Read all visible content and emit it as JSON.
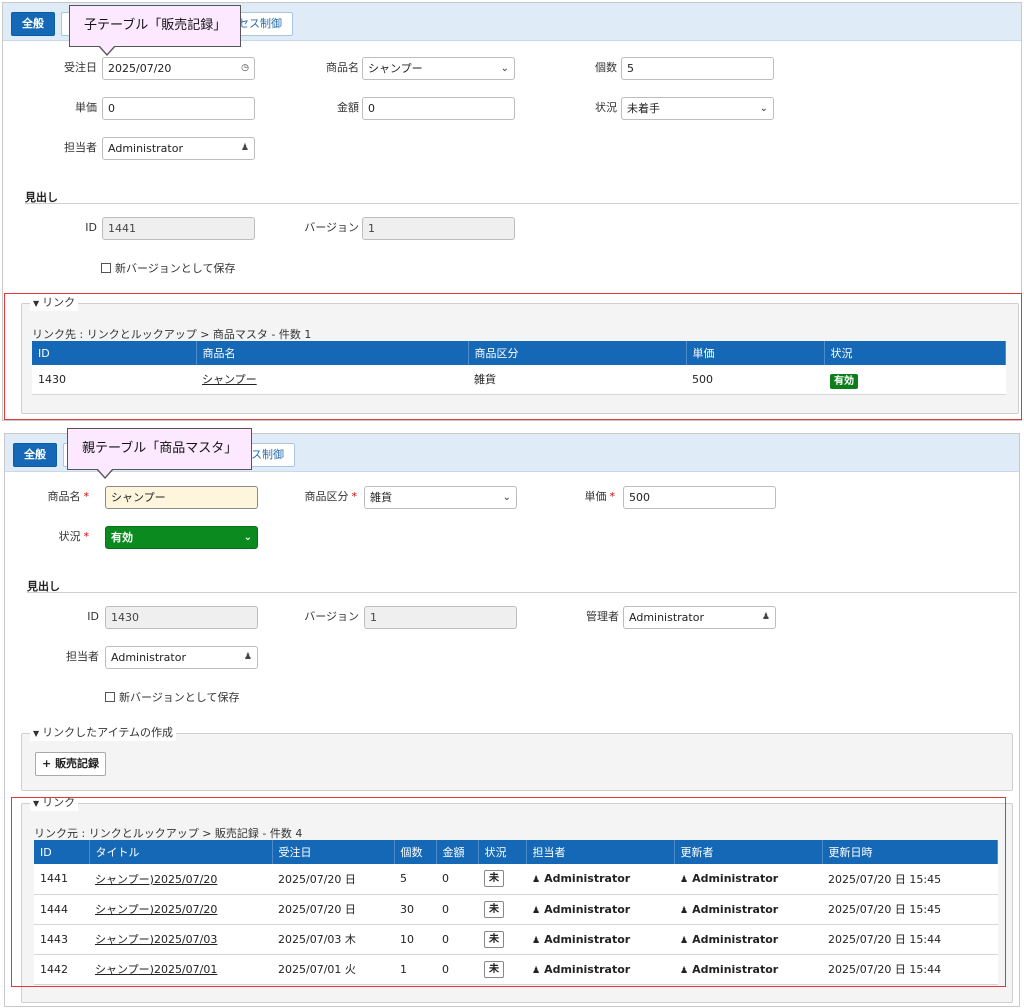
{
  "child": {
    "callout": "子テーブル「販売記録」",
    "tabs": {
      "general": "全般",
      "access": "アクセス制御",
      "access_visible": "セス制御"
    },
    "fields": {
      "order_date": {
        "label": "受注日",
        "value": "2025/07/20"
      },
      "product": {
        "label": "商品名",
        "value": "シャンプー"
      },
      "qty": {
        "label": "個数",
        "value": "5"
      },
      "unit_price": {
        "label": "単価",
        "value": "0"
      },
      "amount": {
        "label": "金額",
        "value": "0"
      },
      "status": {
        "label": "状況",
        "value": "未着手"
      },
      "owner": {
        "label": "担当者",
        "value": "Administrator"
      }
    },
    "heading": "見出し",
    "id": {
      "label": "ID",
      "value": "1441"
    },
    "version": {
      "label": "バージョン",
      "value": "1"
    },
    "save_new_version": "新バージョンとして保存",
    "link": {
      "legend": "リンク",
      "path": "リンク先 : リンクとルックアップ > 商品マスタ - 件数 1",
      "columns": [
        "ID",
        "商品名",
        "商品区分",
        "単価",
        "状況"
      ],
      "rows": [
        {
          "id": "1430",
          "name": "シャンプー",
          "category": "雑貨",
          "price": "500",
          "status": "有効"
        }
      ]
    }
  },
  "parent": {
    "callout": "親テーブル「商品マスタ」",
    "tabs": {
      "general": "全般",
      "access_visible": "セス制御"
    },
    "fields": {
      "product": {
        "label": "商品名",
        "value": "シャンプー"
      },
      "category": {
        "label": "商品区分",
        "value": "雑貨"
      },
      "unit_price": {
        "label": "単価",
        "value": "500"
      },
      "status": {
        "label": "状況",
        "value": "有効"
      }
    },
    "heading": "見出し",
    "id": {
      "label": "ID",
      "value": "1430"
    },
    "version": {
      "label": "バージョン",
      "value": "1"
    },
    "manager": {
      "label": "管理者",
      "value": "Administrator"
    },
    "owner": {
      "label": "担当者",
      "value": "Administrator"
    },
    "save_new_version": "新バージョンとして保存",
    "create_linked": {
      "legend": "リンクしたアイテムの作成",
      "button": "販売記録",
      "button_icon": "+"
    },
    "link": {
      "legend": "リンク",
      "path": "リンク元 : リンクとルックアップ > 販売記録 - 件数 4",
      "columns": [
        "ID",
        "タイトル",
        "受注日",
        "個数",
        "金額",
        "状況",
        "担当者",
        "更新者",
        "更新日時"
      ],
      "rows": [
        {
          "id": "1441",
          "title": "シャンプー)2025/07/20",
          "date": "2025/07/20 日",
          "qty": "5",
          "amount": "0",
          "status": "未",
          "owner": "Administrator",
          "updater": "Administrator",
          "updated": "2025/07/20 日 15:45"
        },
        {
          "id": "1444",
          "title": "シャンプー)2025/07/20",
          "date": "2025/07/20 日",
          "qty": "30",
          "amount": "0",
          "status": "未",
          "owner": "Administrator",
          "updater": "Administrator",
          "updated": "2025/07/20 日 15:45"
        },
        {
          "id": "1443",
          "title": "シャンプー)2025/07/03",
          "date": "2025/07/03 木",
          "qty": "10",
          "amount": "0",
          "status": "未",
          "owner": "Administrator",
          "updater": "Administrator",
          "updated": "2025/07/20 日 15:44"
        },
        {
          "id": "1442",
          "title": "シャンプー)2025/07/01",
          "date": "2025/07/01 火",
          "qty": "1",
          "amount": "0",
          "status": "未",
          "owner": "Administrator",
          "updater": "Administrator",
          "updated": "2025/07/20 日 15:44"
        }
      ]
    }
  },
  "colors": {
    "accent": "#1468b5",
    "status_active": "#0b7d1c",
    "highlight_border": "#e0383d",
    "callout_bg": "#fde9ff"
  }
}
